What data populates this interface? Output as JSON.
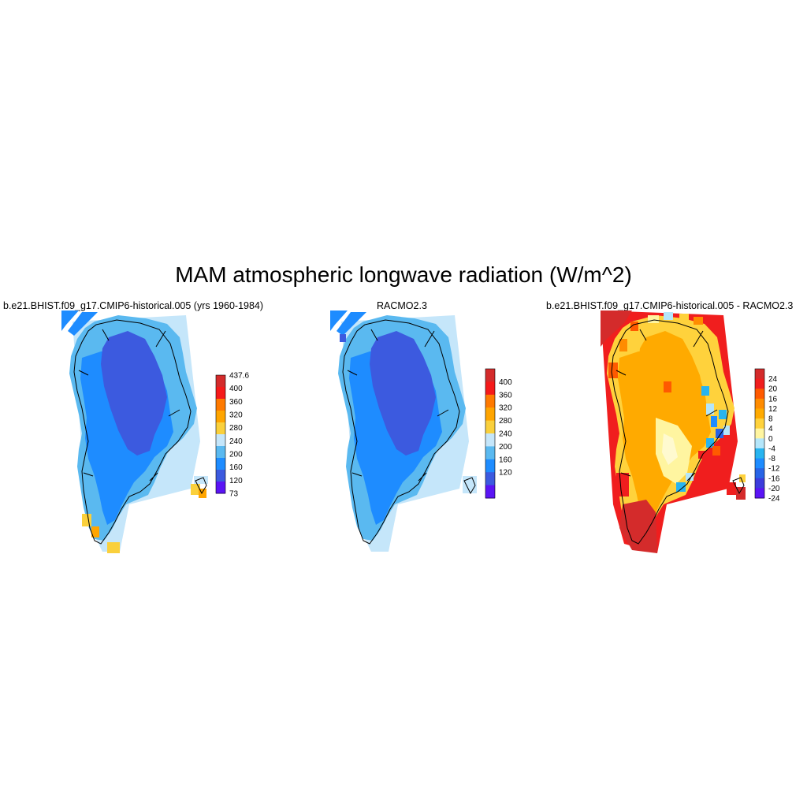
{
  "title": "MAM atmospheric longwave radiation (W/m^2)",
  "panels": [
    {
      "id": "model",
      "title": "b.e21.BHIST.f09_g17.CMIP6-historical.005 (yrs 1960-1984)",
      "colorbar": {
        "labels": [
          "437.6",
          "400",
          "360",
          "320",
          "280",
          "240",
          "200",
          "160",
          "120",
          "73"
        ],
        "colors": [
          "#d42b2b",
          "#f51a1a",
          "#ff7a00",
          "#ffa500",
          "#fad03c",
          "#c5e6fa",
          "#5ab9f0",
          "#1e8cff",
          "#3c5adf",
          "#5a14f5"
        ]
      }
    },
    {
      "id": "racmo",
      "title": "RACMO2.3",
      "colorbar": {
        "labels": [
          "400",
          "360",
          "320",
          "280",
          "240",
          "200",
          "160",
          "120"
        ],
        "colors": [
          "#d42b2b",
          "#f51a1a",
          "#ff7a00",
          "#ffa500",
          "#fad03c",
          "#c5e6fa",
          "#5ab9f0",
          "#1e8cff",
          "#3c5adf",
          "#5a14f5"
        ]
      }
    },
    {
      "id": "diff",
      "title": "b.e21.BHIST.f09_g17.CMIP6-historical.005 - RACMO2.3",
      "colorbar": {
        "labels": [
          "24",
          "20",
          "16",
          "12",
          "8",
          "4",
          "0",
          "-4",
          "-8",
          "-12",
          "-16",
          "-20",
          "-24"
        ],
        "colors": [
          "#d42b2b",
          "#f01e1e",
          "#ff5a00",
          "#ff8c00",
          "#ffaa00",
          "#ffd23c",
          "#fff5a0",
          "#b4e6fa",
          "#28b4f0",
          "#1e8cff",
          "#2864e6",
          "#3c3cdc",
          "#5a14f5"
        ]
      }
    }
  ]
}
